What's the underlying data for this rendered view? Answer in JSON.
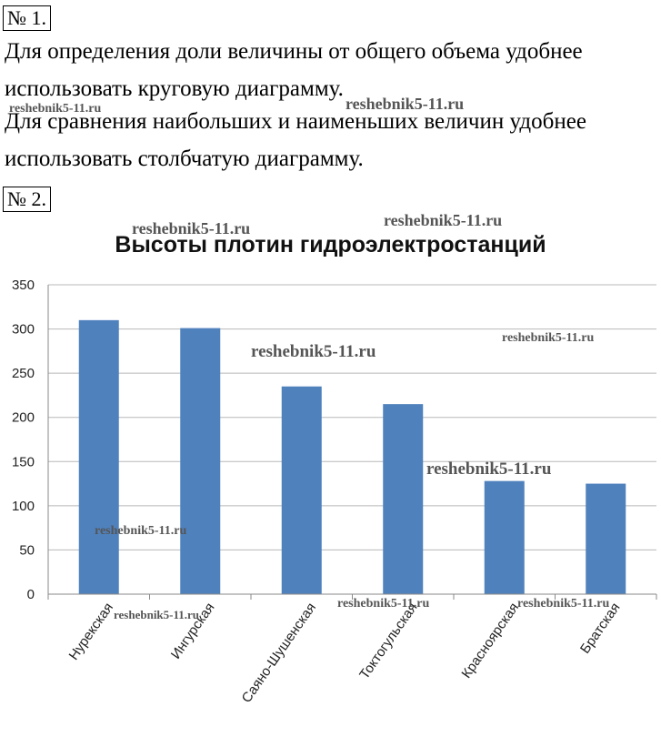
{
  "task1": {
    "number_label": "№ 1.",
    "lines": [
      "Для определения доли величины от общего объема удобнее",
      "использовать круговую диаграмму.",
      "Для сравнения наибольших и наименьших величин удобнее",
      "использовать столбчатую диаграмму."
    ]
  },
  "task2": {
    "number_label": "№ 2."
  },
  "watermarks": [
    "reshebnik5-11.ru",
    "reshebnik5-11.ru",
    "reshebnik5-11.ru",
    "reshebnik5-11.ru",
    "reshebnik5-11.ru",
    "reshebnik5-11.ru",
    "reshebnik5-11.ru",
    "reshebnik5-11.ru",
    "reshebnik5-11.ru",
    "reshebnik5-11.ru",
    "reshebnik5-11.ru"
  ],
  "chart_data": {
    "type": "bar",
    "title": "Высоты плотин гидроэлектростанций",
    "categories": [
      "Нурекская",
      "Ингурская",
      "Саяно-Шушенская",
      "Токтогульская",
      "Красноярская",
      "Братская"
    ],
    "values": [
      310,
      301,
      235,
      215,
      128,
      125
    ],
    "ylim": [
      0,
      350
    ],
    "yticks": [
      0,
      50,
      100,
      150,
      200,
      250,
      300,
      350
    ],
    "grid": true,
    "legend": "none",
    "bar_color": "#4f81bd"
  }
}
